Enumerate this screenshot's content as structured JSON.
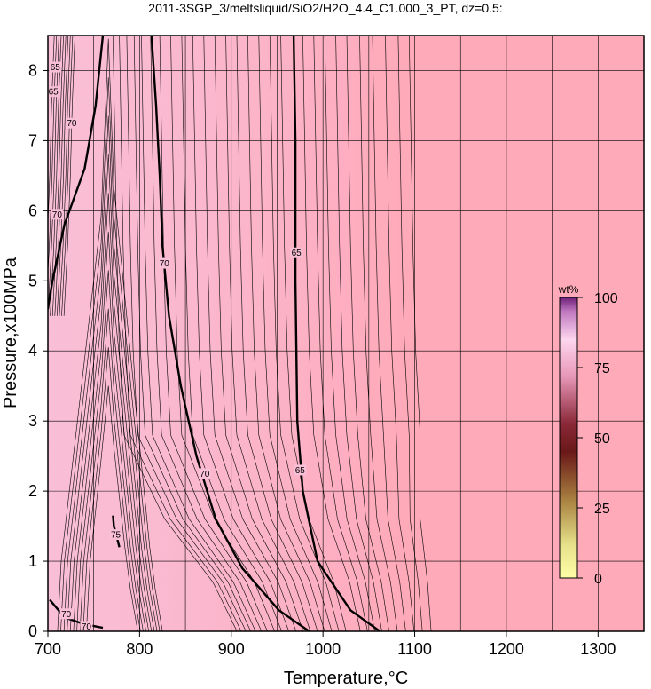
{
  "title": "2011-3SGP_3/meltsliquid/SiO2/H2O_4.4_C1.000_3_PT, dz=0.5:",
  "chart_data": {
    "type": "heatmap",
    "xlabel": "Temperature,°C",
    "ylabel": "Pressure,x100MPa",
    "xlim": [
      700,
      1350
    ],
    "ylim": [
      0,
      8.5
    ],
    "xticks": [
      700,
      800,
      900,
      1000,
      1100,
      1200,
      1300
    ],
    "yticks": [
      0,
      1,
      2,
      3,
      4,
      5,
      6,
      7,
      8
    ],
    "grid": true,
    "colorbar": {
      "unit": "wt%",
      "ticks": [
        0,
        25,
        50,
        75,
        100
      ],
      "range": [
        0,
        100
      ],
      "placement": "right-inside"
    },
    "colors": {
      "field_high": "#f9bfd6",
      "field_low": "#ffaab9",
      "contour": "#000000"
    },
    "major_contours": [
      {
        "level": 70,
        "points": [
          [
            760,
            8.5
          ],
          [
            752,
            7.5
          ],
          [
            740,
            6.6
          ],
          [
            718,
            5.8
          ],
          [
            705,
            5.0
          ],
          [
            700,
            4.6
          ]
        ]
      },
      {
        "level": 70,
        "points": [
          [
            813,
            8.5
          ],
          [
            818,
            7.5
          ],
          [
            822,
            6.5
          ],
          [
            825,
            5.5
          ],
          [
            832,
            4.5
          ],
          [
            845,
            3.5
          ],
          [
            862,
            2.5
          ],
          [
            883,
            1.6
          ],
          [
            912,
            0.9
          ],
          [
            952,
            0.3
          ],
          [
            985,
            0.0
          ]
        ]
      },
      {
        "level": 65,
        "points": [
          [
            968,
            8.5
          ],
          [
            970,
            7.0
          ],
          [
            970,
            5.0
          ],
          [
            972,
            3.0
          ],
          [
            978,
            2.0
          ],
          [
            994,
            1.0
          ],
          [
            1030,
            0.3
          ],
          [
            1062,
            0.0
          ]
        ]
      },
      {
        "level": 70,
        "points": [
          [
            702,
            0.45
          ],
          [
            718,
            0.2
          ],
          [
            740,
            0.1
          ],
          [
            760,
            0.05
          ]
        ]
      },
      {
        "level": 75,
        "points": [
          [
            771,
            1.65
          ],
          [
            772,
            1.5
          ],
          [
            776,
            1.3
          ],
          [
            778,
            1.2
          ]
        ]
      }
    ],
    "contour_labels": [
      {
        "text": "70",
        "x": 726,
        "y": 7.25
      },
      {
        "text": "65",
        "x": 706,
        "y": 7.7
      },
      {
        "text": "65",
        "x": 708,
        "y": 8.05
      },
      {
        "text": "70",
        "x": 710,
        "y": 5.95
      },
      {
        "text": "70",
        "x": 827,
        "y": 5.25
      },
      {
        "text": "70",
        "x": 871,
        "y": 2.25
      },
      {
        "text": "65",
        "x": 971,
        "y": 5.4
      },
      {
        "text": "65",
        "x": 975,
        "y": 2.3
      },
      {
        "text": "70",
        "x": 720,
        "y": 0.25
      },
      {
        "text": "70",
        "x": 742,
        "y": 0.07
      },
      {
        "text": "75",
        "x": 774,
        "y": 1.38
      }
    ]
  }
}
